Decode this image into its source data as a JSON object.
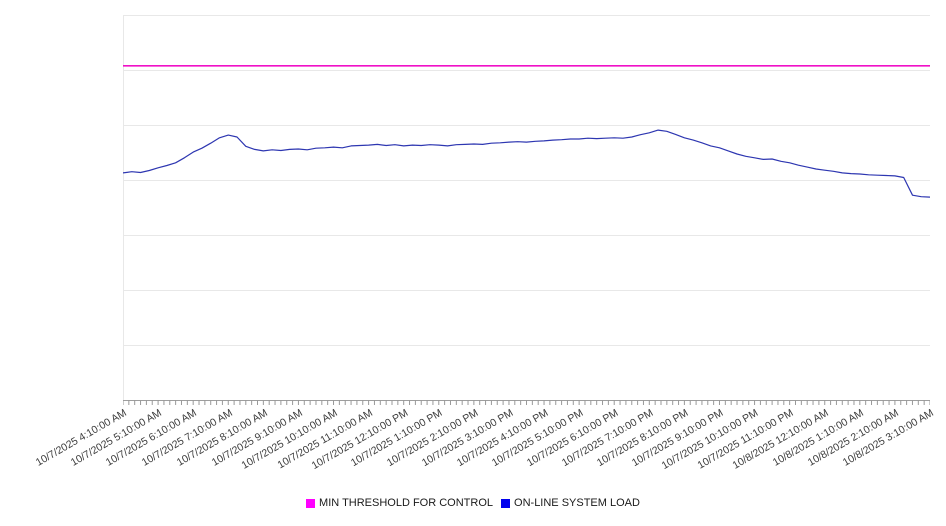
{
  "chart_data": {
    "type": "line",
    "title": "",
    "xlabel": "",
    "ylabel": "",
    "ylim": [
      0,
      100
    ],
    "grid_divisions": 7,
    "grid_color": "#e8e8e8",
    "axis_color": "#9e9e9e",
    "tick_color": "#999999",
    "label_color": "#3c3c3c",
    "background": "#ffffff",
    "x_axis": {
      "minor_ticks_per_hour": 6,
      "hour_labels": [
        "10/7/2025 4:10:00 AM",
        "10/7/2025 5:10:00 AM",
        "10/7/2025 6:10:00 AM",
        "10/7/2025 7:10:00 AM",
        "10/7/2025 8:10:00 AM",
        "10/7/2025 9:10:00 AM",
        "10/7/2025 10:10:00 AM",
        "10/7/2025 11:10:00 AM",
        "10/7/2025 12:10:00 PM",
        "10/7/2025 1:10:00 PM",
        "10/7/2025 2:10:00 PM",
        "10/7/2025 3:10:00 PM",
        "10/7/2025 4:10:00 PM",
        "10/7/2025 5:10:00 PM",
        "10/7/2025 6:10:00 PM",
        "10/7/2025 7:10:00 PM",
        "10/7/2025 8:10:00 PM",
        "10/7/2025 9:10:00 PM",
        "10/7/2025 10:10:00 PM",
        "10/7/2025 11:10:00 PM",
        "10/8/2025 12:10:00 AM",
        "10/8/2025 1:10:00 AM",
        "10/8/2025 2:10:00 AM",
        "10/8/2025 3:10:00 AM"
      ]
    },
    "series": [
      {
        "name": "MIN THRESHOLD FOR CONTROL",
        "type": "constant",
        "value": 86.8,
        "color": "#f011c8",
        "swatch_color": "#ff00ff"
      },
      {
        "name": "ON-LINE SYSTEM LOAD",
        "type": "line",
        "sample_interval_minutes": 15,
        "start_label": "10/7/2025 4:10:00 AM",
        "end_label": "10/8/2025 3:10:00 AM",
        "color": "#2d36b1",
        "swatch_color": "#0000ee",
        "values": [
          59.0,
          59.3,
          59.1,
          59.6,
          60.3,
          60.9,
          61.6,
          62.9,
          64.4,
          65.4,
          66.7,
          68.1,
          68.8,
          68.3,
          65.9,
          65.1,
          64.7,
          65.0,
          64.8,
          65.1,
          65.2,
          65.0,
          65.4,
          65.5,
          65.7,
          65.5,
          66.0,
          66.1,
          66.2,
          66.4,
          66.1,
          66.3,
          66.0,
          66.2,
          66.1,
          66.3,
          66.2,
          66.0,
          66.3,
          66.4,
          66.5,
          66.4,
          66.7,
          66.8,
          67.0,
          67.1,
          67.0,
          67.2,
          67.3,
          67.5,
          67.6,
          67.8,
          67.8,
          68.0,
          67.9,
          68.0,
          68.1,
          68.0,
          68.3,
          68.9,
          69.4,
          70.1,
          69.8,
          69.0,
          68.1,
          67.5,
          66.8,
          66.0,
          65.5,
          64.7,
          63.9,
          63.3,
          62.9,
          62.5,
          62.6,
          62.0,
          61.6,
          61.0,
          60.5,
          60.0,
          59.7,
          59.4,
          59.0,
          58.8,
          58.7,
          58.5,
          58.4,
          58.3,
          58.2,
          57.8,
          53.2,
          52.8,
          52.7
        ]
      }
    ],
    "legend_position": "bottom-center"
  }
}
